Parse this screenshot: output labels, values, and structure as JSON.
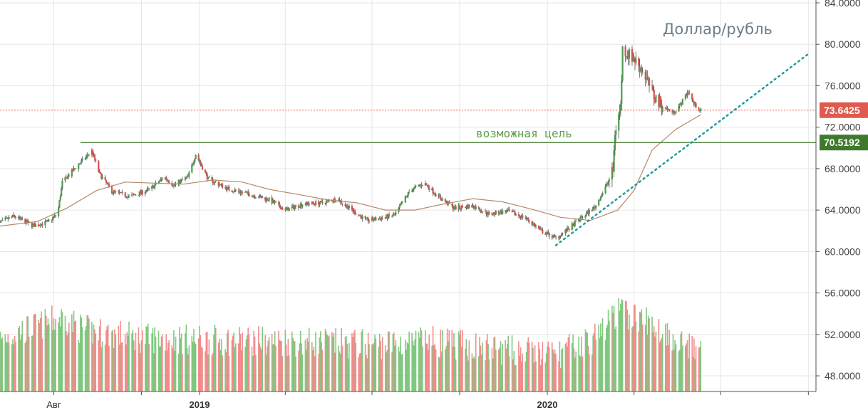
{
  "chart_data": {
    "type": "candlestick",
    "title": "Доллар/рубль",
    "y_axis": {
      "position": "right",
      "ylim": [
        47,
        84
      ],
      "ticks": [
        "84.0000",
        "80.0000",
        "76.0000",
        "72.0000",
        "68.0000",
        "64.0000",
        "60.0000",
        "56.0000",
        "52.0000",
        "48.0000"
      ],
      "tick_values": [
        84,
        80,
        76,
        72,
        68,
        64,
        60,
        56,
        52,
        48
      ]
    },
    "x_axis": {
      "labels": [
        {
          "text": "Авг",
          "bold": false
        },
        {
          "text": "2019",
          "bold": true
        },
        {
          "text": "2020",
          "bold": true
        }
      ],
      "range": [
        "2018-06",
        "2020-09"
      ]
    },
    "grid": true,
    "price_keypoints": [
      [
        "2018-06-01",
        62.6
      ],
      [
        "2018-06-20",
        63.4
      ],
      [
        "2018-07-10",
        62.5
      ],
      [
        "2018-07-25",
        62.8
      ],
      [
        "2018-08-05",
        63.6
      ],
      [
        "2018-08-10",
        66.7
      ],
      [
        "2018-08-25",
        68.2
      ],
      [
        "2018-09-10",
        69.7
      ],
      [
        "2018-09-18",
        67.5
      ],
      [
        "2018-10-01",
        65.8
      ],
      [
        "2018-10-20",
        65.3
      ],
      [
        "2018-11-10",
        66.0
      ],
      [
        "2018-11-25",
        67.2
      ],
      [
        "2018-12-05",
        66.4
      ],
      [
        "2018-12-20",
        67.2
      ],
      [
        "2018-12-28",
        69.4
      ],
      [
        "2019-01-10",
        67.0
      ],
      [
        "2019-02-01",
        66.0
      ],
      [
        "2019-02-20",
        65.6
      ],
      [
        "2019-03-15",
        65.0
      ],
      [
        "2019-04-01",
        64.0
      ],
      [
        "2019-04-20",
        64.6
      ],
      [
        "2019-05-10",
        64.7
      ],
      [
        "2019-05-25",
        65.1
      ],
      [
        "2019-06-10",
        64.0
      ],
      [
        "2019-06-25",
        63.0
      ],
      [
        "2019-07-10",
        63.2
      ],
      [
        "2019-07-25",
        63.5
      ],
      [
        "2019-08-10",
        65.9
      ],
      [
        "2019-08-25",
        66.6
      ],
      [
        "2019-09-10",
        65.2
      ],
      [
        "2019-09-25",
        64.2
      ],
      [
        "2019-10-15",
        64.4
      ],
      [
        "2019-11-01",
        63.6
      ],
      [
        "2019-11-20",
        63.9
      ],
      [
        "2019-12-10",
        63.2
      ],
      [
        "2019-12-25",
        62.0
      ],
      [
        "2020-01-10",
        61.3
      ],
      [
        "2020-01-25",
        62.3
      ],
      [
        "2020-02-05",
        63.2
      ],
      [
        "2020-02-20",
        64.3
      ],
      [
        "2020-03-01",
        66.0
      ],
      [
        "2020-03-10",
        67.8
      ],
      [
        "2020-03-12",
        71.5
      ],
      [
        "2020-03-18",
        74.0
      ],
      [
        "2020-03-20",
        79.5
      ],
      [
        "2020-03-31",
        78.7
      ],
      [
        "2020-04-10",
        77.5
      ],
      [
        "2020-04-22",
        75.0
      ],
      [
        "2020-05-01",
        74.0
      ],
      [
        "2020-05-12",
        73.4
      ],
      [
        "2020-05-20",
        74.2
      ],
      [
        "2020-05-28",
        75.5
      ],
      [
        "2020-06-03",
        74.2
      ],
      [
        "2020-06-10",
        73.6
      ]
    ],
    "moving_average_keypoints": [
      [
        "2018-06-01",
        62.4
      ],
      [
        "2018-07-15",
        62.9
      ],
      [
        "2018-08-15",
        64.2
      ],
      [
        "2018-09-15",
        65.9
      ],
      [
        "2018-10-15",
        66.7
      ],
      [
        "2018-11-15",
        66.6
      ],
      [
        "2018-12-15",
        66.5
      ],
      [
        "2019-01-15",
        66.9
      ],
      [
        "2019-02-15",
        66.7
      ],
      [
        "2019-03-15",
        66.0
      ],
      [
        "2019-04-15",
        65.5
      ],
      [
        "2019-05-15",
        65.0
      ],
      [
        "2019-06-15",
        64.7
      ],
      [
        "2019-07-15",
        64.0
      ],
      [
        "2019-08-15",
        64.0
      ],
      [
        "2019-09-15",
        64.6
      ],
      [
        "2019-10-15",
        65.1
      ],
      [
        "2019-11-15",
        64.8
      ],
      [
        "2019-12-15",
        64.1
      ],
      [
        "2020-01-15",
        63.3
      ],
      [
        "2020-02-15",
        63.0
      ],
      [
        "2020-03-15",
        64.0
      ],
      [
        "2020-04-01",
        65.9
      ],
      [
        "2020-04-20",
        69.8
      ],
      [
        "2020-05-15",
        71.8
      ],
      [
        "2020-06-10",
        73.2
      ]
    ],
    "volume_keypoints": [
      [
        "2018-06-01",
        51.0
      ],
      [
        "2018-08-10",
        53.2
      ],
      [
        "2018-09-01",
        52.0
      ],
      [
        "2018-11-01",
        51.2
      ],
      [
        "2019-01-10",
        51.0
      ],
      [
        "2019-04-01",
        50.9
      ],
      [
        "2019-07-01",
        50.6
      ],
      [
        "2019-09-01",
        50.9
      ],
      [
        "2019-11-01",
        50.2
      ],
      [
        "2020-01-10",
        49.6
      ],
      [
        "2020-02-20",
        51.2
      ],
      [
        "2020-03-15",
        53.8
      ],
      [
        "2020-04-10",
        53.0
      ],
      [
        "2020-05-15",
        51.2
      ],
      [
        "2020-06-10",
        49.5
      ]
    ],
    "series": [
      {
        "name": "Доллар/рубль",
        "kind": "candles"
      },
      {
        "kind": "moving-average",
        "color": "#b5896a"
      },
      {
        "kind": "volume"
      }
    ],
    "lines": {
      "current_price": {
        "value": 73.6425,
        "label": "73.6425",
        "color": "#e05a4f"
      },
      "target": {
        "value": 70.5192,
        "label": "70.5192",
        "color": "#3f7a2c",
        "note": "возможная цель"
      },
      "trend": {
        "from": [
          "2020-01-10",
          60.6
        ],
        "to": [
          "2020-09-30",
          79.0
        ],
        "color": "#1f9a9a",
        "style": "dotted"
      }
    },
    "colors": {
      "up": "#6cbf6c",
      "down": "#f07a7a",
      "grid": "#e6e6e6",
      "axis": "#555555"
    }
  }
}
